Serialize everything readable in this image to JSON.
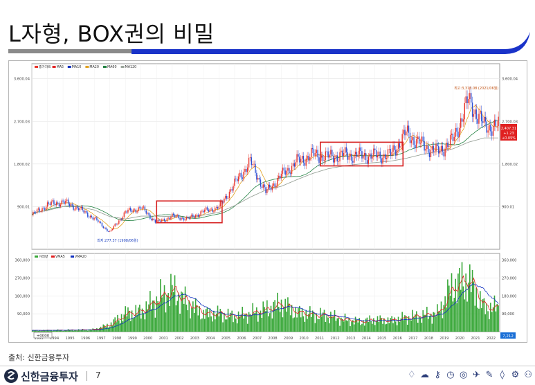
{
  "slide": {
    "title": "L자형, BOX권의 비밀",
    "source": "출처: 신한금융투자",
    "brand": "신한금융투자",
    "page_number": "7"
  },
  "colors": {
    "title_rule_gray": "#8a8a8a",
    "title_rule_blue": "#1a33c9",
    "candle_up": "#e8342a",
    "candle_down": "#2a4fd6",
    "ma5": "#e02020",
    "ma10": "#1030c0",
    "ma20": "#e0a020",
    "ma60": "#208040",
    "ma120": "#9aa39a",
    "volume_bar": "#3aa83a",
    "box_outline": "#d62020",
    "current_price_tag": "#e02020",
    "current_volume_tag": "#1a6fd6"
  },
  "chart_data": [
    {
      "type": "candlestick",
      "legend": [
        "종가차트",
        "MA5",
        "MA10",
        "MA20",
        "MA60",
        "MA120"
      ],
      "y_ticks": [
        "3,600.04",
        "2,700.03",
        "1,800.02",
        "900.01"
      ],
      "y_tick_values": [
        3600.04,
        2700.03,
        1800.02,
        900.01
      ],
      "ylim": [
        0,
        3600
      ],
      "x": [
        1993,
        1994,
        1995,
        1996,
        1997,
        1998,
        1999,
        2000,
        2001,
        2002,
        2003,
        2004,
        2005,
        2006,
        2007,
        2008,
        2009,
        2010,
        2011,
        2012,
        2013,
        2014,
        2015,
        2016,
        2017,
        2018,
        2019,
        2020,
        2021,
        2022
      ],
      "series": [
        {
          "name": "종가차트",
          "values": [
            720,
            940,
            1000,
            860,
            650,
            360,
            780,
            880,
            560,
            700,
            640,
            800,
            890,
            1380,
            1850,
            1200,
            1560,
            1850,
            2000,
            1950,
            1990,
            1980,
            1970,
            1990,
            2450,
            2200,
            2050,
            2300,
            3150,
            2600
          ]
        },
        {
          "name": "MA120",
          "values": [
            760,
            820,
            900,
            900,
            830,
            690,
            640,
            700,
            700,
            690,
            680,
            720,
            780,
            920,
            1100,
            1250,
            1330,
            1470,
            1600,
            1700,
            1760,
            1800,
            1830,
            1860,
            1920,
            2000,
            2060,
            2120,
            2260,
            2350
          ]
        }
      ],
      "annotations": [
        {
          "text": "최고:3,316.08 (2021/06월)",
          "x": 2021.5,
          "y": 3316.08
        },
        {
          "text": "최저:277.37 (1998/06월)",
          "x": 1998.5,
          "y": 277.37
        }
      ],
      "price_tag_lines": [
        "2,407.31",
        "+1.23",
        "+0.05%"
      ],
      "highlight_boxes": [
        {
          "x_range": [
            2001,
            2005.2
          ],
          "y_range": [
            560,
            1020
          ]
        },
        {
          "x_range": [
            2011.5,
            2016.8
          ],
          "y_range": [
            1760,
            2260
          ]
        }
      ]
    },
    {
      "type": "bar",
      "legend": [
        "거래량",
        "VMA5",
        "VMA20"
      ],
      "y_ticks": [
        "360,000",
        "270,000",
        "180,000",
        "90,000"
      ],
      "y_tick_values": [
        360000,
        270000,
        180000,
        90000
      ],
      "ylim": [
        0,
        360000
      ],
      "x_labels": [
        "1993",
        "1994",
        "1995",
        "1996",
        "1997",
        "1998",
        "1999",
        "2000",
        "2001",
        "2002",
        "2003",
        "2004",
        "2005",
        "2006",
        "2007",
        "2008",
        "2009",
        "2010",
        "2011",
        "2012",
        "2013",
        "2014",
        "2015",
        "2016",
        "2017",
        "2018",
        "2019",
        "2020",
        "2021",
        "2022"
      ],
      "values": [
        6000,
        7000,
        8000,
        9000,
        11000,
        35000,
        90000,
        100000,
        160000,
        210000,
        140000,
        90000,
        90000,
        75000,
        90000,
        110000,
        140000,
        95000,
        85000,
        80000,
        60000,
        50000,
        60000,
        55000,
        70000,
        80000,
        90000,
        230000,
        260000,
        120000
      ],
      "left_readout": "+0000",
      "volume_tag": "7,212"
    }
  ]
}
